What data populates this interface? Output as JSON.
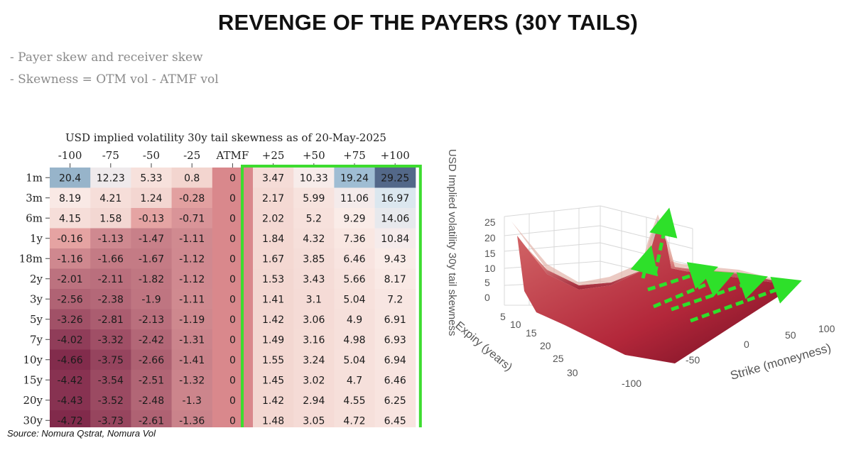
{
  "title": "REVENGE OF THE PAYERS (30Y TAILS)",
  "bullets": [
    "- Payer skew and receiver skew",
    "- Skewness = OTM vol - ATMF vol"
  ],
  "source": "Source: Nomura Qstrat, Nomura Vol",
  "highlight_color": "#3ddc2f",
  "arrow_color": "#2ee02a",
  "chart_data": [
    {
      "type": "heatmap",
      "title": "USD implied volatility 30y tail skewness as of 20-May-2025",
      "columns": [
        "-100",
        "-75",
        "-50",
        "-25",
        "ATMF",
        "+25",
        "+50",
        "+75",
        "+100"
      ],
      "rows": [
        "1m",
        "3m",
        "6m",
        "1y",
        "18m",
        "2y",
        "3y",
        "5y",
        "7y",
        "10y",
        "15y",
        "20y",
        "30y"
      ],
      "values": [
        [
          20.4,
          12.23,
          5.33,
          0.8,
          0,
          3.47,
          10.33,
          19.24,
          29.25
        ],
        [
          8.19,
          4.21,
          1.24,
          -0.28,
          0,
          2.17,
          5.99,
          11.06,
          16.97
        ],
        [
          4.15,
          1.58,
          -0.13,
          -0.71,
          0,
          2.02,
          5.2,
          9.29,
          14.06
        ],
        [
          -0.16,
          -1.13,
          -1.47,
          -1.11,
          0,
          1.84,
          4.32,
          7.36,
          10.84
        ],
        [
          -1.16,
          -1.66,
          -1.67,
          -1.12,
          0,
          1.67,
          3.85,
          6.46,
          9.43
        ],
        [
          -2.01,
          -2.11,
          -1.82,
          -1.12,
          0,
          1.53,
          3.43,
          5.66,
          8.17
        ],
        [
          -2.56,
          -2.38,
          -1.9,
          -1.11,
          0,
          1.41,
          3.1,
          5.04,
          7.2
        ],
        [
          -3.26,
          -2.81,
          -2.13,
          -1.19,
          0,
          1.42,
          3.06,
          4.9,
          6.91
        ],
        [
          -4.02,
          -3.32,
          -2.42,
          -1.31,
          0,
          1.49,
          3.16,
          4.98,
          6.93
        ],
        [
          -4.66,
          -3.75,
          -2.66,
          -1.41,
          0,
          1.55,
          3.24,
          5.04,
          6.94
        ],
        [
          -4.42,
          -3.54,
          -2.51,
          -1.32,
          0,
          1.45,
          3.02,
          4.7,
          6.46
        ],
        [
          -4.43,
          -3.52,
          -2.48,
          -1.3,
          0,
          1.42,
          2.94,
          4.55,
          6.25
        ],
        [
          -4.72,
          -3.73,
          -2.61,
          -1.36,
          0,
          1.48,
          3.05,
          4.72,
          6.45
        ]
      ],
      "highlighted_columns": [
        "+25",
        "+50",
        "+75",
        "+100"
      ],
      "color_scale": {
        "low": "#7b2346",
        "mid": "#d98a8a",
        "zero": "#e8a7a5",
        "high": "#4a5d80"
      }
    },
    {
      "type": "surface",
      "zlabel": "USD Implied volatility 30y tail skewness",
      "xlabel": "Strike (moneyness)",
      "ylabel": "Expiry (years)",
      "z_ticks": [
        "25",
        "20",
        "15",
        "10",
        "5",
        "0"
      ],
      "x_ticks": [
        "-100",
        "-50",
        "0",
        "50",
        "100"
      ],
      "y_ticks": [
        "5",
        "10",
        "15",
        "20",
        "25",
        "30"
      ],
      "zlim": [
        0,
        25
      ]
    }
  ]
}
